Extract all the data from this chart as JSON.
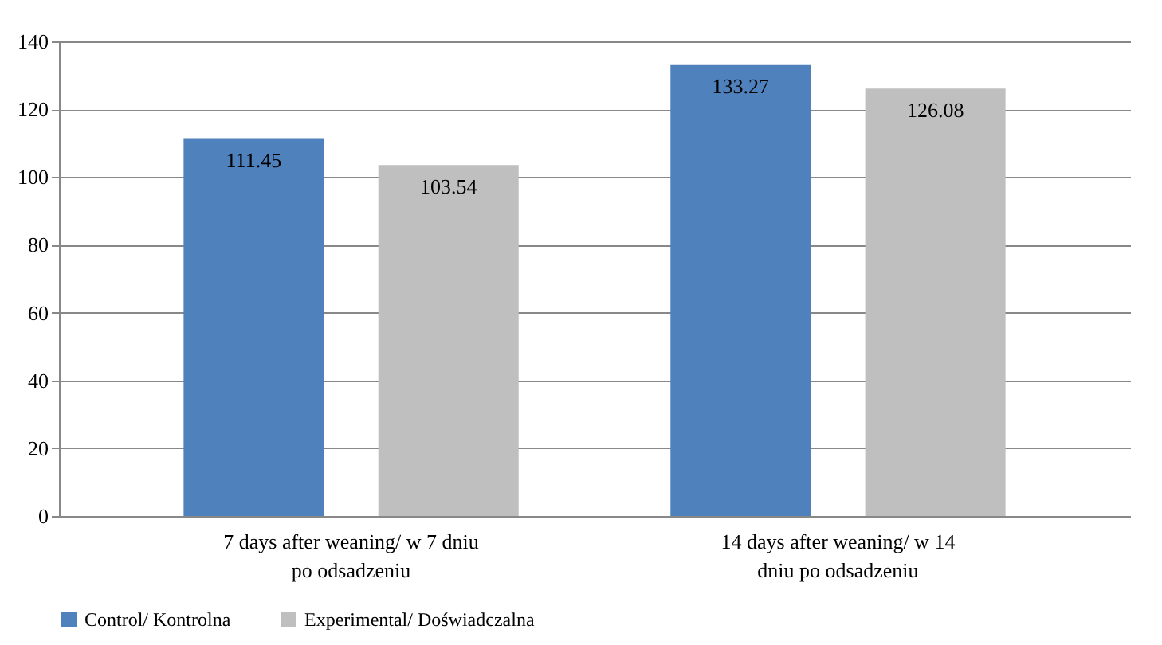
{
  "chart_data": {
    "type": "bar",
    "categories": [
      "7 days after weaning/ w 7 dniu po odsadzeniu",
      "14 days after weaning/ w 14 dniu po odsadzeniu"
    ],
    "series": [
      {
        "name": "Control/ Kontrolna",
        "color": "#4f81bd",
        "values": [
          111.45,
          133.27
        ]
      },
      {
        "name": "Experimental/ Doświadczalna",
        "color": "#bfbfbf",
        "values": [
          103.54,
          126.08
        ]
      }
    ],
    "ylim": [
      0,
      140
    ],
    "yticks": [
      0,
      20,
      40,
      60,
      80,
      100,
      120,
      140
    ],
    "grid": "y",
    "legend": "bottom",
    "data_labels": true
  }
}
